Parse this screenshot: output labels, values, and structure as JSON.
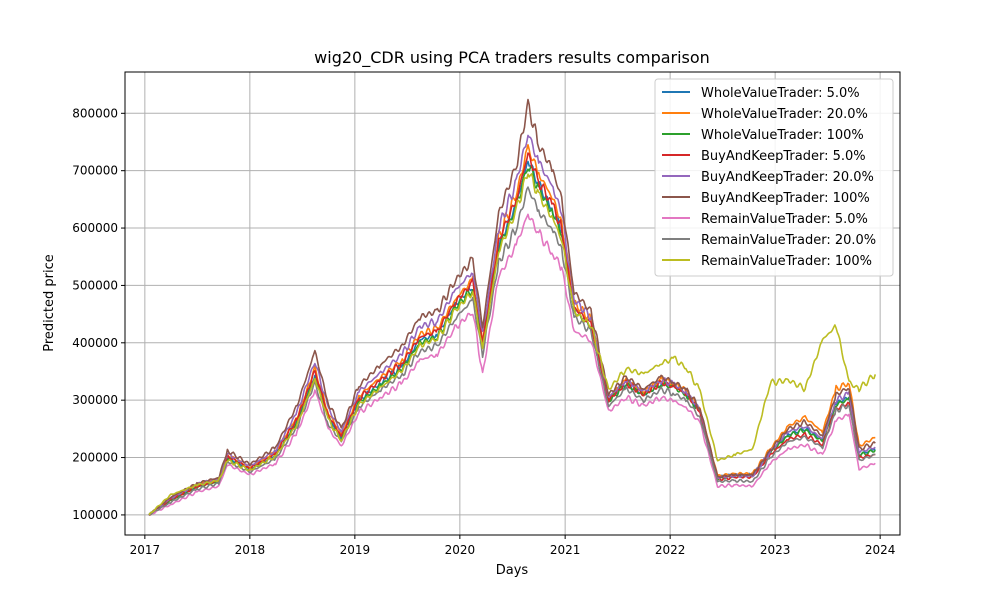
{
  "chart_data": {
    "type": "line",
    "title": "wig20_CDR using PCA traders results comparison",
    "xlabel": "Days",
    "ylabel": "Predicted price",
    "xlim": [
      "2016-10-24",
      "2024-03-10"
    ],
    "ylim": [
      65000,
      872000
    ],
    "x_ticks": [
      "2017",
      "2018",
      "2019",
      "2020",
      "2021",
      "2022",
      "2023",
      "2024"
    ],
    "y_ticks": [
      100000,
      200000,
      300000,
      400000,
      500000,
      600000,
      700000,
      800000
    ],
    "y_tick_labels": [
      "100000",
      "200000",
      "300000",
      "400000",
      "500000",
      "600000",
      "700000",
      "800000"
    ],
    "grid": true,
    "legend_position": "top-right",
    "x": [
      "2017-01-15",
      "2017-04-01",
      "2017-07-01",
      "2017-09-15",
      "2017-10-15",
      "2018-01-01",
      "2018-04-01",
      "2018-06-15",
      "2018-08-15",
      "2018-10-01",
      "2018-11-15",
      "2019-01-15",
      "2019-04-01",
      "2019-06-15",
      "2019-08-15",
      "2019-10-15",
      "2019-12-15",
      "2020-02-15",
      "2020-03-20",
      "2020-05-15",
      "2020-07-15",
      "2020-08-25",
      "2020-10-01",
      "2020-11-20",
      "2020-12-20",
      "2021-02-01",
      "2021-04-01",
      "2021-06-01",
      "2021-08-01",
      "2021-10-01",
      "2021-12-01",
      "2022-01-15",
      "2022-03-01",
      "2022-04-15",
      "2022-06-15",
      "2022-08-15",
      "2022-10-15",
      "2022-12-15",
      "2023-02-15",
      "2023-04-15",
      "2023-06-15",
      "2023-08-01",
      "2023-09-15",
      "2023-10-20",
      "2023-12-15"
    ],
    "series": [
      {
        "name": "WholeValueTrader: 5.0%",
        "color": "#1f77b4",
        "values": [
          100000,
          128000,
          150000,
          160000,
          200000,
          180000,
          205000,
          265000,
          345000,
          270000,
          235000,
          300000,
          330000,
          360000,
          405000,
          415000,
          465000,
          500000,
          400000,
          570000,
          640000,
          720000,
          675000,
          630000,
          595000,
          460000,
          430000,
          300000,
          330000,
          310000,
          330000,
          325000,
          310000,
          280000,
          165000,
          170000,
          170000,
          210000,
          240000,
          250000,
          230000,
          295000,
          305000,
          205000,
          215000
        ]
      },
      {
        "name": "WholeValueTrader: 20.0%",
        "color": "#ff7f0e",
        "values": [
          100000,
          130000,
          152000,
          162000,
          205000,
          183000,
          210000,
          272000,
          355000,
          278000,
          240000,
          307000,
          340000,
          370000,
          415000,
          425000,
          475000,
          510000,
          405000,
          585000,
          660000,
          740000,
          695000,
          650000,
          610000,
          470000,
          440000,
          305000,
          335000,
          315000,
          335000,
          330000,
          315000,
          285000,
          168000,
          172000,
          172000,
          215000,
          255000,
          270000,
          245000,
          320000,
          330000,
          220000,
          235000
        ]
      },
      {
        "name": "WholeValueTrader: 100%",
        "color": "#2ca02c",
        "values": [
          100000,
          125000,
          148000,
          158000,
          198000,
          178000,
          203000,
          262000,
          340000,
          266000,
          232000,
          296000,
          326000,
          355000,
          400000,
          410000,
          460000,
          495000,
          395000,
          565000,
          635000,
          712000,
          668000,
          624000,
          590000,
          455000,
          428000,
          298000,
          328000,
          308000,
          328000,
          322000,
          308000,
          278000,
          163000,
          168000,
          168000,
          208000,
          238000,
          248000,
          228000,
          292000,
          302000,
          203000,
          213000
        ]
      },
      {
        "name": "BuyAndKeepTrader: 5.0%",
        "color": "#d62728",
        "values": [
          100000,
          127000,
          150000,
          160000,
          202000,
          181000,
          206000,
          268000,
          350000,
          273000,
          237000,
          303000,
          335000,
          365000,
          410000,
          420000,
          470000,
          505000,
          402000,
          578000,
          650000,
          728000,
          682000,
          638000,
          600000,
          462000,
          432000,
          300000,
          330000,
          310000,
          330000,
          324000,
          309000,
          280000,
          162000,
          166000,
          166000,
          205000,
          232000,
          240000,
          222000,
          285000,
          295000,
          200000,
          205000
        ]
      },
      {
        "name": "BuyAndKeepTrader: 20.0%",
        "color": "#9467bd",
        "values": [
          100000,
          129000,
          153000,
          163000,
          207000,
          185000,
          212000,
          280000,
          368000,
          285000,
          245000,
          315000,
          348000,
          380000,
          428000,
          438000,
          490000,
          525000,
          415000,
          600000,
          680000,
          765000,
          715000,
          670000,
          625000,
          475000,
          445000,
          305000,
          335000,
          315000,
          335000,
          328000,
          312000,
          283000,
          165000,
          168000,
          168000,
          210000,
          245000,
          255000,
          232000,
          300000,
          312000,
          210000,
          218000
        ]
      },
      {
        "name": "BuyAndKeepTrader: 100%",
        "color": "#8c564b",
        "values": [
          100000,
          131000,
          155000,
          165000,
          212000,
          188000,
          218000,
          292000,
          385000,
          295000,
          250000,
          325000,
          362000,
          395000,
          445000,
          455000,
          508000,
          545000,
          428000,
          625000,
          710000,
          815000,
          745000,
          700000,
          650000,
          488000,
          455000,
          310000,
          340000,
          320000,
          340000,
          332000,
          316000,
          286000,
          166000,
          170000,
          170000,
          212000,
          250000,
          262000,
          238000,
          310000,
          322000,
          215000,
          225000
        ]
      },
      {
        "name": "RemainValueTrader: 5.0%",
        "color": "#e377c2",
        "values": [
          100000,
          118000,
          140000,
          150000,
          188000,
          170000,
          190000,
          245000,
          318000,
          250000,
          220000,
          278000,
          305000,
          330000,
          370000,
          380000,
          425000,
          455000,
          345000,
          515000,
          570000,
          625000,
          590000,
          555000,
          530000,
          420000,
          405000,
          280000,
          305000,
          290000,
          305000,
          298000,
          286000,
          260000,
          150000,
          152000,
          150000,
          190000,
          215000,
          222000,
          205000,
          265000,
          275000,
          180000,
          190000
        ]
      },
      {
        "name": "RemainValueTrader: 20.0%",
        "color": "#7f7f7f",
        "values": [
          100000,
          122000,
          145000,
          155000,
          193000,
          175000,
          198000,
          255000,
          330000,
          258000,
          228000,
          288000,
          318000,
          345000,
          385000,
          395000,
          442000,
          475000,
          380000,
          540000,
          600000,
          670000,
          630000,
          595000,
          565000,
          445000,
          420000,
          290000,
          320000,
          300000,
          318000,
          312000,
          298000,
          270000,
          158000,
          160000,
          158000,
          200000,
          228000,
          235000,
          218000,
          282000,
          292000,
          195000,
          205000
        ]
      },
      {
        "name": "RemainValueTrader: 100%",
        "color": "#bcbd22",
        "values": [
          100000,
          135000,
          152000,
          160000,
          195000,
          178000,
          203000,
          258000,
          338000,
          265000,
          230000,
          292000,
          322000,
          352000,
          395000,
          408000,
          455000,
          490000,
          388000,
          560000,
          630000,
          700000,
          658000,
          615000,
          580000,
          455000,
          430000,
          318000,
          355000,
          345000,
          365000,
          372000,
          355000,
          315000,
          195000,
          205000,
          215000,
          330000,
          335000,
          320000,
          405000,
          430000,
          330000,
          320000,
          345000
        ]
      }
    ]
  }
}
